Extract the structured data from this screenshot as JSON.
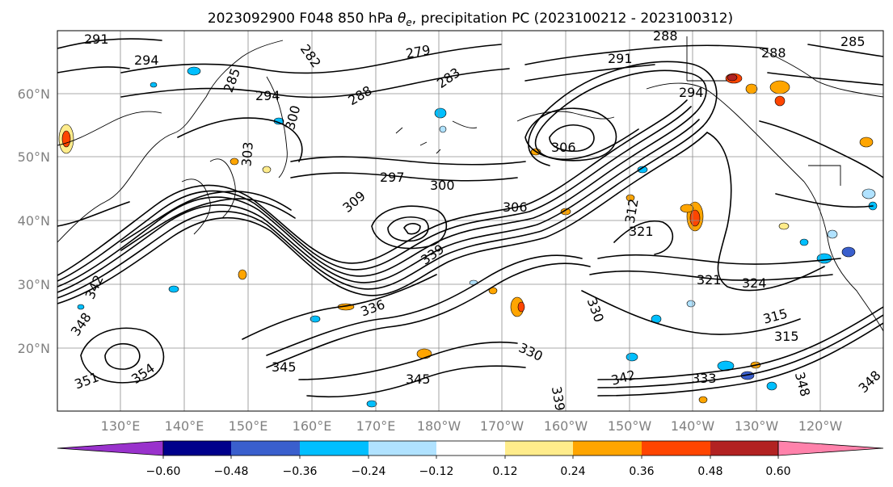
{
  "title": {
    "prefix": "2023092900 F048 850 hPa ",
    "symbol": "θ",
    "subscript": "e",
    "suffix": ", precipitation PC (2023100212 - 2023100312)"
  },
  "map": {
    "lat_labels": [
      "60°N",
      "50°N",
      "40°N",
      "30°N",
      "20°N"
    ],
    "lon_labels": [
      "130°E",
      "140°E",
      "150°E",
      "160°E",
      "170°E",
      "180°W",
      "170°W",
      "160°W",
      "150°W",
      "140°W",
      "130°W",
      "120°W"
    ],
    "contour_labels": [
      "291",
      "294",
      "285",
      "282",
      "279",
      "283",
      "288",
      "291",
      "288",
      "285",
      "294",
      "294",
      "288",
      "300",
      "303",
      "306",
      "297",
      "300",
      "306",
      "309",
      "312",
      "339",
      "321",
      "324",
      "342",
      "348",
      "330",
      "336",
      "315",
      "315",
      "321",
      "345",
      "345",
      "351",
      "354",
      "330",
      "339",
      "342",
      "333",
      "348",
      "348"
    ]
  },
  "colorbar": {
    "tick_labels": [
      "−0.60",
      "−0.48",
      "−0.36",
      "−0.24",
      "−0.12",
      "0.12",
      "0.24",
      "0.36",
      "0.48",
      "0.60"
    ],
    "colors": [
      "#9932cc",
      "#00008b",
      "#3a5fcd",
      "#00bfff",
      "#b0e2ff",
      "#ffffff",
      "#ffec8b",
      "#ffa500",
      "#ff4500",
      "#b22222",
      "#ff82ab"
    ]
  }
}
